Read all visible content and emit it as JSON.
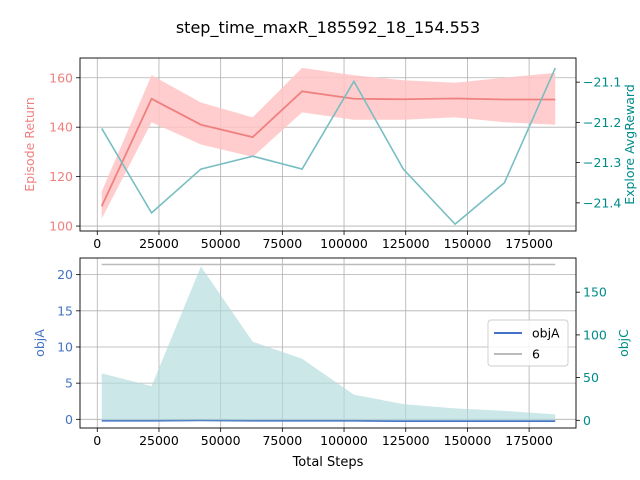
{
  "figure_title": "step_time_maxR_185592_18_154.553",
  "colors": {
    "return_line": "#f08080",
    "return_band": "#ffc4c4",
    "explore_line": "#78bec3",
    "objA": "#4472c4",
    "objC_fill": "#b0dadc",
    "hline6": "#bbbbbb",
    "left_axis_top": "#f08080",
    "right_axis_top": "#008b8b",
    "left_axis_bottom": "#4472c4",
    "right_axis_bottom": "#008b8b",
    "grid": "#b0b0b0"
  },
  "chart_data": [
    {
      "type": "line",
      "title": "step_time_maxR_185592_18_154.553",
      "xlabel": "",
      "xlim": [
        -7000,
        194000
      ],
      "xticks": [
        0,
        25000,
        50000,
        75000,
        100000,
        125000,
        150000,
        175000
      ],
      "xtick_labels": [
        "0",
        "25000",
        "50000",
        "75000",
        "100000",
        "125000",
        "150000",
        "175000"
      ],
      "grid": true,
      "y_left": {
        "label": "Episode Return",
        "lim": [
          98,
          168
        ],
        "ticks": [
          100,
          120,
          140,
          160
        ],
        "tick_labels": [
          "100",
          "120",
          "140",
          "160"
        ]
      },
      "y_right": {
        "label": "Explore AvgReward",
        "lim": [
          -21.47,
          -21.04
        ],
        "ticks": [
          -21.4,
          -21.3,
          -21.2,
          -21.1
        ],
        "tick_labels": [
          "−21.4",
          "−21.3",
          "−21.2",
          "−21.1"
        ]
      },
      "series": [
        {
          "name": "Episode Return",
          "axis": "left",
          "x": [
            1800,
            22000,
            42000,
            63000,
            83000,
            104000,
            124000,
            145000,
            165000,
            185592
          ],
          "values": [
            108,
            151.5,
            141,
            136,
            154.5,
            151.5,
            151.3,
            151.6,
            151.2,
            151.2
          ],
          "lower": [
            103,
            142,
            133,
            128,
            146,
            143,
            143,
            144,
            142,
            141
          ],
          "upper": [
            114,
            161,
            150,
            144,
            164,
            161,
            159,
            158,
            160,
            162
          ]
        },
        {
          "name": "Explore AvgReward",
          "axis": "right",
          "x": [
            1800,
            22000,
            42000,
            63000,
            83000,
            104000,
            124000,
            145000,
            165000,
            185592
          ],
          "values": [
            -21.215,
            -21.425,
            -21.316,
            -21.284,
            -21.316,
            -21.098,
            -21.316,
            -21.453,
            -21.35,
            -21.065
          ]
        }
      ]
    },
    {
      "type": "area",
      "title": "",
      "xlabel": "Total Steps",
      "xlim": [
        -7000,
        194000
      ],
      "xticks": [
        0,
        25000,
        50000,
        75000,
        100000,
        125000,
        150000,
        175000
      ],
      "xtick_labels": [
        "0",
        "25000",
        "50000",
        "75000",
        "100000",
        "125000",
        "150000",
        "175000"
      ],
      "grid": true,
      "legend": {
        "placement": "center-right",
        "entries": [
          "objA",
          "6"
        ]
      },
      "y_left": {
        "label": "objA",
        "lim": [
          -1.2,
          22.3
        ],
        "ticks": [
          0,
          5,
          10,
          15,
          20
        ],
        "tick_labels": [
          "0",
          "5",
          "10",
          "15",
          "20"
        ]
      },
      "y_right": {
        "label": "objC",
        "lim": [
          -9,
          190
        ],
        "ticks": [
          0,
          50,
          100,
          150
        ],
        "tick_labels": [
          "0",
          "50",
          "100",
          "150"
        ]
      },
      "series": [
        {
          "name": "objA",
          "axis": "left",
          "x": [
            1800,
            22000,
            42000,
            63000,
            83000,
            104000,
            124000,
            145000,
            165000,
            185592
          ],
          "values": [
            -0.2,
            -0.2,
            -0.15,
            -0.2,
            -0.2,
            -0.2,
            -0.25,
            -0.25,
            -0.25,
            -0.25
          ]
        },
        {
          "name": "6",
          "axis": "left",
          "x": [
            1800,
            185592
          ],
          "values": [
            21.4,
            21.4
          ]
        },
        {
          "name": "objC",
          "axis": "right",
          "x": [
            1800,
            22000,
            42000,
            63000,
            83000,
            104000,
            124000,
            145000,
            165000,
            185592
          ],
          "values": [
            55,
            40,
            180,
            92,
            72,
            30,
            19,
            14,
            11,
            7
          ]
        }
      ]
    }
  ]
}
